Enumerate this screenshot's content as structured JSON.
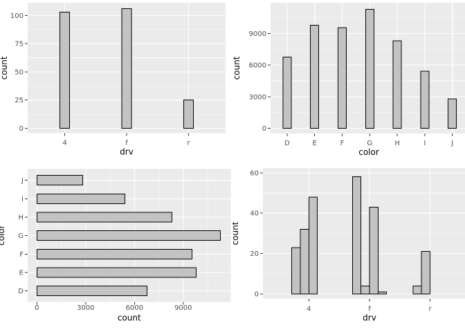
{
  "page": {
    "background": "#ffffff",
    "description": "2x2 grid of ggplot-style bar charts"
  },
  "theme": {
    "panel_bg": "#ebebeb",
    "grid_major": "#ffffff",
    "grid_minor": "#ffffff",
    "bar_fill": "#c3c3c3",
    "bar_stroke": "#000000",
    "tick_label_color": "#4d4d4d",
    "axis_title_color": "#000000",
    "tick_mark_color": "#333333"
  },
  "chart_data": [
    {
      "id": "drv-count-bar",
      "type": "bar",
      "orientation": "vertical",
      "title": "",
      "xlabel": "drv",
      "ylabel": "count",
      "categories": [
        "4",
        "f",
        "r"
      ],
      "values": [
        103,
        106,
        25
      ],
      "ytick_values": [
        0,
        25,
        50,
        75,
        100
      ],
      "ytick_labels": [
        "0",
        "25",
        "50",
        "75",
        "100"
      ],
      "ylim": [
        0,
        111
      ],
      "grid": true,
      "legend": "none"
    },
    {
      "id": "color-count-bar",
      "type": "bar",
      "orientation": "vertical",
      "title": "",
      "xlabel": "color",
      "ylabel": "count",
      "categories": [
        "D",
        "E",
        "F",
        "G",
        "H",
        "I",
        "J"
      ],
      "values": [
        6775,
        9797,
        9542,
        11292,
        8304,
        5422,
        2808
      ],
      "ytick_values": [
        0,
        3000,
        6000,
        9000
      ],
      "ytick_labels": [
        "0",
        "3000",
        "6000",
        "9000"
      ],
      "ylim": [
        0,
        11857
      ],
      "grid": true,
      "legend": "none"
    },
    {
      "id": "color-count-flipped-bar",
      "type": "bar",
      "orientation": "horizontal",
      "title": "",
      "xlabel": "count",
      "ylabel": "color",
      "categories": [
        "D",
        "E",
        "F",
        "G",
        "H",
        "I",
        "J"
      ],
      "values": [
        6775,
        9797,
        9542,
        11292,
        8304,
        5422,
        2808
      ],
      "xtick_values": [
        0,
        3000,
        6000,
        9000
      ],
      "xtick_labels": [
        "0",
        "3000",
        "6000",
        "9000"
      ],
      "xlim": [
        0,
        11857
      ],
      "category_axis_order": "D at bottom, J at top",
      "grid": true,
      "legend": "none"
    },
    {
      "id": "drv-count-dodged-bar",
      "type": "bar",
      "orientation": "vertical",
      "dodged": true,
      "title": "",
      "xlabel": "drv",
      "ylabel": "count",
      "categories": [
        "4",
        "f",
        "r"
      ],
      "series_per_category": [
        [
          23,
          32,
          48
        ],
        [
          58,
          4,
          43,
          1
        ],
        [
          4,
          21
        ]
      ],
      "ytick_values": [
        0,
        20,
        40,
        60
      ],
      "ytick_labels": [
        "0",
        "20",
        "40",
        "60"
      ],
      "ylim": [
        0,
        61
      ],
      "grid": true,
      "legend": "none"
    }
  ]
}
